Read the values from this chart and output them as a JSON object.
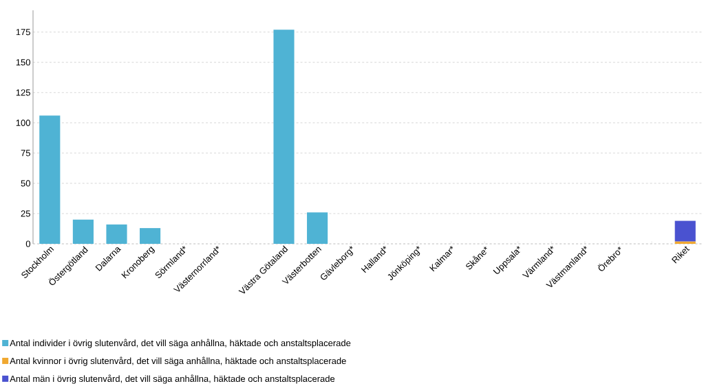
{
  "chart_data": {
    "type": "bar",
    "stacked": true,
    "categories": [
      "Stockholm",
      "Östergötland",
      "Dalarna",
      "Kronoberg",
      "Sörmland*",
      "Västernorrland*",
      null,
      "Västra Götaland",
      "Västerbotten",
      "Gävleborg*",
      "Halland*",
      "Jönköping*",
      "Kalmar*",
      "Skåne*",
      "Uppsala*",
      "Värmland*",
      "Västmanland*",
      "Örebro*",
      null,
      "Riket"
    ],
    "series": [
      {
        "name": "Antal individer i övrig slutenvård, det vill säga anhållna, häktade och anstaltsplacerade",
        "color": "#4fb3d4",
        "values": [
          106,
          20,
          16,
          13,
          null,
          null,
          null,
          177,
          26,
          null,
          null,
          null,
          null,
          null,
          null,
          null,
          null,
          null,
          null,
          null
        ]
      },
      {
        "name": "Antal kvinnor i övrig slutenvård, det vill säga anhållna, häktade och anstaltsplacerade",
        "color": "#f0a830",
        "values": [
          null,
          null,
          null,
          null,
          null,
          null,
          null,
          null,
          null,
          null,
          null,
          null,
          null,
          null,
          null,
          null,
          null,
          null,
          null,
          2
        ]
      },
      {
        "name": "Antal män i övrig slutenvård, det vill säga anhållna, häktade och anstaltsplacerade",
        "color": "#4a52d0",
        "values": [
          null,
          null,
          null,
          null,
          null,
          null,
          null,
          null,
          null,
          null,
          null,
          null,
          null,
          null,
          null,
          null,
          null,
          null,
          null,
          17
        ]
      }
    ],
    "ylim": [
      0,
      193
    ],
    "yticks": [
      0,
      25,
      50,
      75,
      100,
      125,
      150,
      175
    ],
    "grid": "y",
    "legend": "bottom"
  }
}
